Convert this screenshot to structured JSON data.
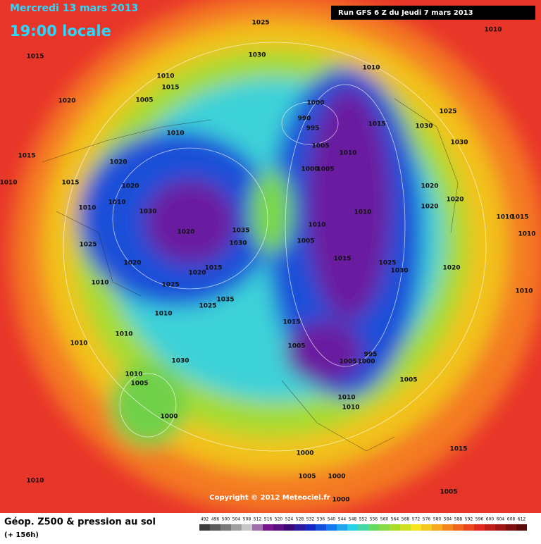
{
  "header": {
    "date": "Mercredi 13 mars 2013",
    "time": "19:00 locale",
    "run": "Run GFS 6 Z du Jeudi 7 mars 2013"
  },
  "map": {
    "copyright": "Copyright © 2012 Meteociel.fr",
    "pressure_labels": [
      1025,
      1010,
      1015,
      1030,
      1010,
      1010,
      1015,
      1005,
      1020,
      1000,
      1025,
      990,
      995,
      1015,
      1030,
      1010,
      1005,
      1030,
      1010,
      1015,
      1020,
      1000,
      1005,
      1010,
      1015,
      1020,
      1020,
      1020,
      1010,
      1010,
      1030,
      1020,
      1010,
      1010,
      1015,
      1010,
      1035,
      1020,
      1010,
      1030,
      1005,
      1025,
      1015,
      1025,
      1020,
      1015,
      1030,
      1020,
      1020,
      1010,
      1025,
      1010,
      1035,
      1025,
      1010,
      1015,
      1010,
      1010,
      1005,
      995,
      1030,
      1005,
      1000,
      1010,
      1005,
      1005,
      1010,
      1010,
      1000,
      1015,
      1000,
      1010,
      1005,
      1000,
      1005,
      1000
    ]
  },
  "legend": {
    "title": "Géop. Z500 & pression au sol",
    "lead": "(+ 156h)",
    "scale": [
      492,
      496,
      500,
      504,
      508,
      512,
      516,
      520,
      524,
      528,
      532,
      536,
      540,
      544,
      548,
      552,
      556,
      560,
      564,
      568,
      572,
      576,
      580,
      584,
      588,
      592,
      596,
      600,
      604,
      608,
      612
    ]
  }
}
